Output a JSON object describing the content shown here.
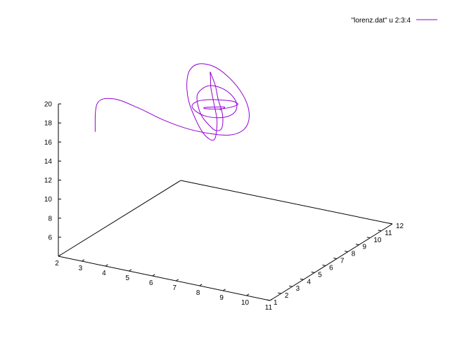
{
  "chart_data": {
    "type": "line",
    "title": "",
    "series": [
      {
        "name": "\"lorenz.dat\" u 2:3:4",
        "color": "#9400d3",
        "kind": "spiral-3d",
        "fixed_point": {
          "x": 5.5,
          "y": 8.0,
          "z": 16.0
        },
        "points_x": [
          1.2,
          2.0,
          3.3,
          4.6,
          5.6,
          6.3,
          6.8,
          7.0,
          6.9,
          6.5,
          5.9,
          5.2,
          4.5,
          4.0,
          3.7,
          3.8,
          4.2,
          4.8,
          5.5,
          6.1,
          6.5,
          6.6,
          6.4,
          6.0,
          5.4,
          4.8,
          4.4,
          4.2,
          4.3,
          4.7,
          5.2,
          5.8,
          6.2,
          6.4,
          6.3,
          6.0,
          5.5,
          5.0,
          4.6,
          4.5,
          4.6,
          5.0,
          5.5,
          5.9,
          6.1,
          6.1,
          5.9,
          5.5,
          5.1,
          4.8,
          4.8,
          5.0,
          5.4,
          5.7,
          5.9,
          5.8,
          5.6,
          5.3,
          5.1,
          5.1,
          5.3,
          5.5,
          5.6,
          5.6,
          5.5
        ],
        "points_y": [
          6.0,
          4.5,
          3.2,
          2.6,
          2.7,
          3.4,
          4.5,
          5.8,
          7.2,
          8.6,
          9.8,
          10.6,
          10.9,
          10.7,
          10.0,
          9.0,
          7.9,
          6.8,
          5.9,
          5.3,
          5.1,
          5.3,
          5.9,
          6.8,
          7.8,
          8.8,
          9.6,
          10.0,
          9.9,
          9.4,
          8.6,
          7.7,
          6.9,
          6.3,
          6.0,
          6.1,
          6.5,
          7.2,
          8.0,
          8.8,
          9.3,
          9.5,
          9.3,
          8.8,
          8.2,
          7.6,
          7.1,
          6.8,
          6.8,
          7.1,
          7.6,
          8.1,
          8.6,
          8.9,
          8.9,
          8.6,
          8.2,
          7.8,
          7.6,
          7.6,
          7.8,
          8.1,
          8.3,
          8.3,
          8.1
        ],
        "points_z": [
          13.0,
          17.5,
          19.6,
          19.8,
          19.0,
          17.9,
          16.8,
          15.8,
          15.2,
          15.0,
          15.3,
          16.0,
          17.0,
          17.9,
          18.5,
          18.6,
          18.2,
          17.5,
          16.7,
          16.0,
          15.6,
          15.5,
          15.7,
          16.2,
          16.8,
          17.4,
          17.8,
          17.9,
          17.7,
          17.2,
          16.6,
          16.1,
          15.8,
          15.7,
          15.8,
          16.1,
          16.5,
          16.9,
          17.2,
          17.3,
          17.2,
          16.9,
          16.5,
          16.2,
          16.0,
          16.0,
          16.1,
          16.3,
          16.6,
          16.8,
          16.9,
          16.8,
          16.6,
          16.4,
          16.2,
          16.1,
          16.1,
          16.2,
          16.3,
          16.4,
          16.4,
          16.3,
          16.2,
          16.1,
          16.0
        ]
      }
    ],
    "x_ticks": [
      "2",
      "3",
      "4",
      "5",
      "6",
      "7",
      "8",
      "9",
      "10",
      "11"
    ],
    "y_ticks": [
      "1",
      "2",
      "3",
      "4",
      "5",
      "6",
      "7",
      "8",
      "9",
      "10",
      "11",
      "12"
    ],
    "z_ticks": [
      "6",
      "8",
      "10",
      "12",
      "14",
      "16",
      "18",
      "20"
    ],
    "xlim": [
      2,
      11
    ],
    "ylim": [
      1,
      12
    ],
    "zlim": [
      4,
      20
    ],
    "view": "3d-perspective",
    "grid": false,
    "legend_position": "top-right"
  }
}
